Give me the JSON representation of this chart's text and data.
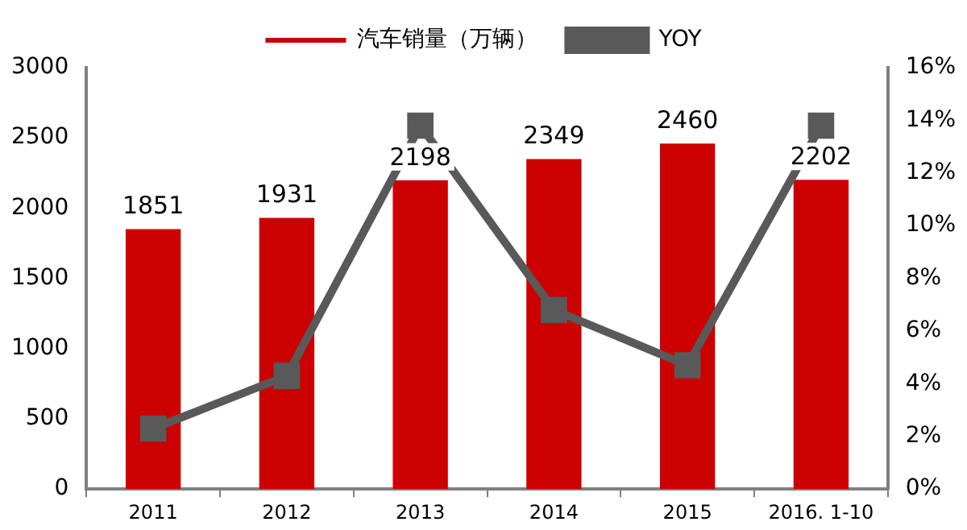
{
  "chart_data": {
    "type": "bar",
    "categories": [
      "2011",
      "2012",
      "2013",
      "2014",
      "2015",
      "2016. 1-10"
    ],
    "series": [
      {
        "name": "汽车销量（万辆）",
        "color": "#cc0000",
        "values": [
          1851,
          1931,
          2198,
          2349,
          2460,
          2202
        ],
        "value_labels": [
          "1851",
          "1931",
          "2198",
          "2349",
          "2460",
          "2202"
        ]
      },
      {
        "name": "YOY",
        "type": "line",
        "axis": "y2",
        "color": "#595959",
        "values": [
          2.3,
          4.3,
          13.8,
          6.8,
          4.7,
          13.8
        ]
      }
    ],
    "ylim": [
      0,
      3000
    ],
    "yticks": [
      0,
      500,
      1000,
      1500,
      2000,
      2500,
      3000
    ],
    "y2lim": [
      0,
      16
    ],
    "y2ticks": [
      {
        "value": 0,
        "label": "0%"
      },
      {
        "value": 2,
        "label": "2%"
      },
      {
        "value": 4,
        "label": "4%"
      },
      {
        "value": 6,
        "label": "6%"
      },
      {
        "value": 8,
        "label": "8%"
      },
      {
        "value": 10,
        "label": "10%"
      },
      {
        "value": 12,
        "label": "12%"
      },
      {
        "value": 14,
        "label": "14%"
      },
      {
        "value": 16,
        "label": "16%"
      }
    ],
    "grid": false,
    "legend": "top",
    "marker": "square",
    "line_style": "solid"
  }
}
